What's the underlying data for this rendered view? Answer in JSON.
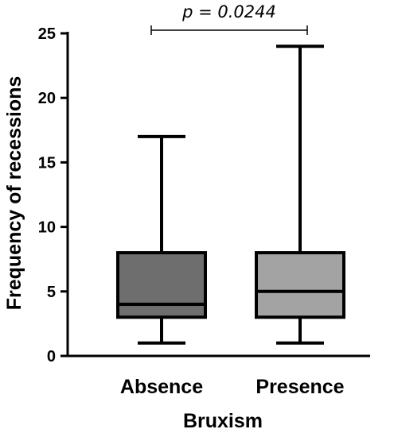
{
  "chart_data": {
    "type": "boxplot",
    "title": "",
    "xlabel": "Bruxism",
    "ylabel": "Frequency of recessions",
    "ylim": [
      0,
      25
    ],
    "yticks": [
      0,
      5,
      10,
      15,
      20,
      25
    ],
    "categories": [
      "Absence",
      "Presence"
    ],
    "boxes": [
      {
        "category": "Absence",
        "min": 1,
        "q1": 3,
        "median": 4,
        "q3": 8,
        "max": 17,
        "color": "#6e6e6e"
      },
      {
        "category": "Presence",
        "min": 1,
        "q1": 3,
        "median": 5,
        "q3": 8,
        "max": 24,
        "color": "#a3a3a3"
      }
    ],
    "annotation": {
      "text": "p = 0.0244",
      "between": [
        "Absence",
        "Presence"
      ]
    },
    "grid": false,
    "legend": "none"
  }
}
